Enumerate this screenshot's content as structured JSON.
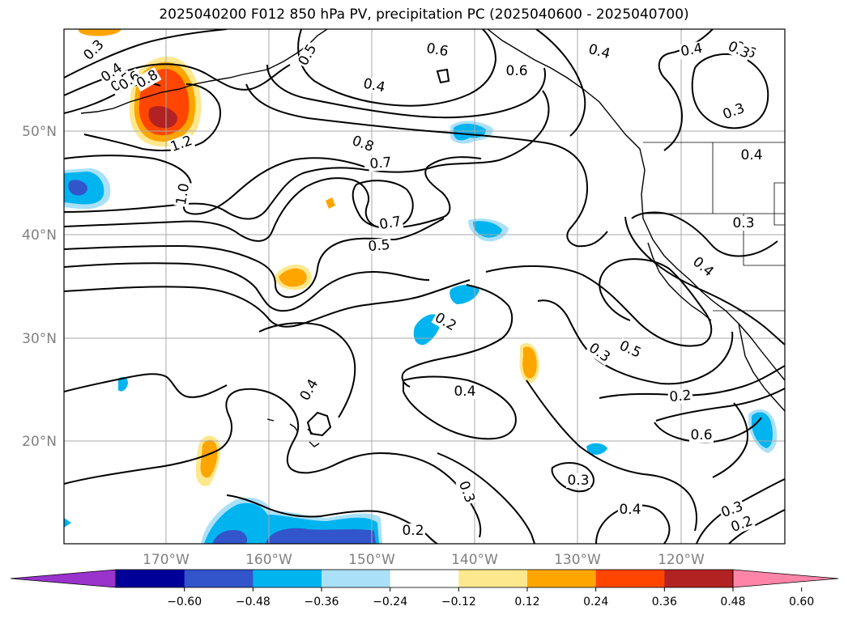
{
  "title": "2025040200 F012 850 hPa PV, precipitation PC (2025040600 - 2025040700)",
  "axes": {
    "lat_labels": [
      "50°N",
      "40°N",
      "30°N",
      "20°N"
    ],
    "lon_labels": [
      "170°W",
      "160°W",
      "150°W",
      "140°W",
      "130°W",
      "120°W"
    ]
  },
  "colorbar": {
    "colors": [
      "#9933cc",
      "#000099",
      "#3355cc",
      "#00b4f0",
      "#aae0f8",
      "#ffffff",
      "#fde88e",
      "#ffa500",
      "#ff4500",
      "#b22222",
      "#ff85a8"
    ],
    "ticks": [
      "−0.60",
      "−0.48",
      "−0.36",
      "−0.24",
      "−0.12",
      "0.12",
      "0.24",
      "0.36",
      "0.48",
      "0.60"
    ]
  },
  "contour_labels": [
    {
      "text": "0.3"
    },
    {
      "text": "0.4"
    },
    {
      "text": "0.5"
    },
    {
      "text": "0.6"
    },
    {
      "text": "0.8"
    },
    {
      "text": "1.2"
    },
    {
      "text": "0.5"
    },
    {
      "text": "0.6"
    },
    {
      "text": "0.4"
    },
    {
      "text": "0.6"
    },
    {
      "text": "0.4"
    },
    {
      "text": "0.4"
    },
    {
      "text": "0.3"
    },
    {
      "text": "0.6"
    },
    {
      "text": "0.3"
    },
    {
      "text": "0.4"
    },
    {
      "text": "0.8"
    },
    {
      "text": "0.7"
    },
    {
      "text": "1.0"
    },
    {
      "text": "0.7"
    },
    {
      "text": "0.5"
    },
    {
      "text": "0.3"
    },
    {
      "text": "0.4"
    },
    {
      "text": "0.2"
    },
    {
      "text": "0.4"
    },
    {
      "text": "0.4"
    },
    {
      "text": "0.3"
    },
    {
      "text": "0.5"
    },
    {
      "text": "0.2"
    },
    {
      "text": "0.6"
    },
    {
      "text": "0.3"
    },
    {
      "text": "0.3"
    },
    {
      "text": "0.4"
    },
    {
      "text": "0.3"
    },
    {
      "text": "0.2"
    },
    {
      "text": "0.2"
    }
  ]
}
